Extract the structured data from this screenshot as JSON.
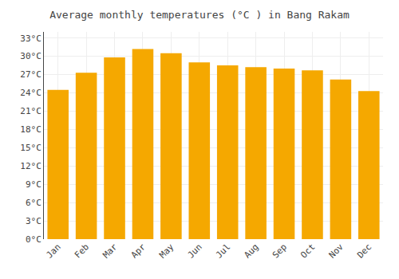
{
  "chart_data": {
    "type": "bar",
    "title": "Average monthly temperatures (°C ) in Bang Rakam",
    "categories": [
      "Jan",
      "Feb",
      "Mar",
      "Apr",
      "May",
      "Jun",
      "Jul",
      "Aug",
      "Sep",
      "Oct",
      "Nov",
      "Dec"
    ],
    "values": [
      24.5,
      27.3,
      29.8,
      31.2,
      30.5,
      29.0,
      28.5,
      28.2,
      28.0,
      27.7,
      26.2,
      24.3
    ],
    "color": "#F5A800",
    "ylim": [
      0,
      34
    ],
    "yticks": [
      {
        "value": 0,
        "label": "0°C"
      },
      {
        "value": 3,
        "label": "3°C"
      },
      {
        "value": 6,
        "label": "6°C"
      },
      {
        "value": 9,
        "label": "9°C"
      },
      {
        "value": 12,
        "label": "12°C"
      },
      {
        "value": 15,
        "label": "15°C"
      },
      {
        "value": 18,
        "label": "18°C"
      },
      {
        "value": 21,
        "label": "21°C"
      },
      {
        "value": 24,
        "label": "24°C"
      },
      {
        "value": 27,
        "label": "27°C"
      },
      {
        "value": 30,
        "label": "30°C"
      },
      {
        "value": 33,
        "label": "33°C"
      }
    ],
    "grid": true
  }
}
